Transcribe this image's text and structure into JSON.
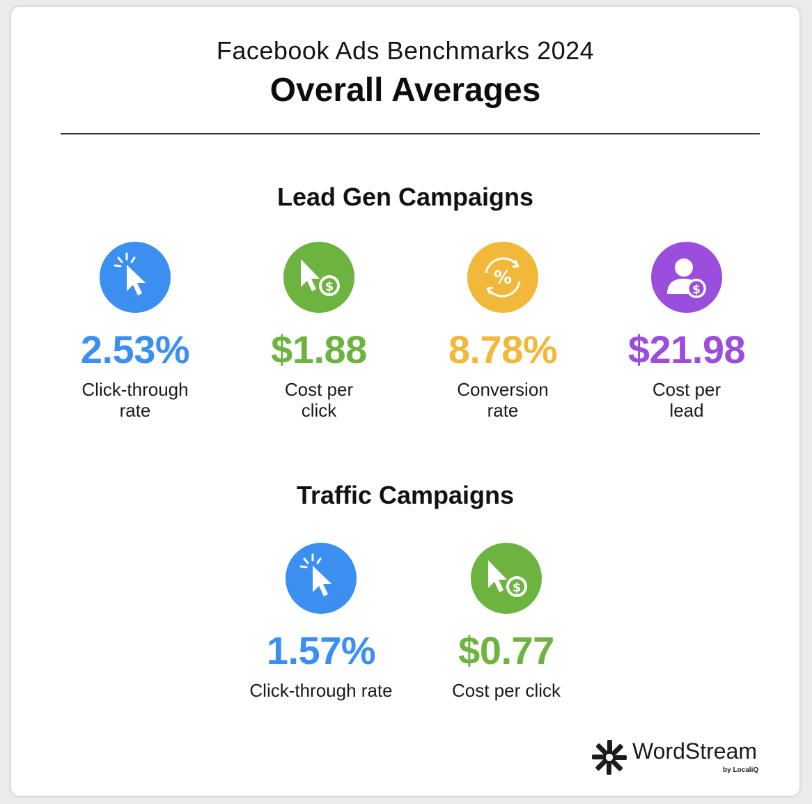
{
  "header": {
    "supertitle": "Facebook Ads Benchmarks 2024",
    "title": "Overall Averages"
  },
  "lead_gen": {
    "title": "Lead Gen Campaigns",
    "metrics": [
      {
        "value": "2.53%",
        "label_line1": "Click-through",
        "label_line2": "rate",
        "color": "#3a8ff0",
        "icon": "cursor-click-icon"
      },
      {
        "value": "$1.88",
        "label_line1": "Cost per",
        "label_line2": "click",
        "color": "#6db33f",
        "icon": "cursor-dollar-icon"
      },
      {
        "value": "8.78%",
        "label_line1": "Conversion",
        "label_line2": "rate",
        "color": "#f2b83a",
        "icon": "percent-cycle-icon"
      },
      {
        "value": "$21.98",
        "label_line1": "Cost per",
        "label_line2": "lead",
        "color": "#9b4ddb",
        "icon": "user-dollar-icon"
      }
    ]
  },
  "traffic": {
    "title": "Traffic Campaigns",
    "metrics": [
      {
        "value": "1.57%",
        "label": "Click-through rate",
        "color": "#3a8ff0",
        "icon": "cursor-click-icon"
      },
      {
        "value": "$0.77",
        "label": "Cost per click",
        "color": "#6db33f",
        "icon": "cursor-dollar-icon"
      }
    ]
  },
  "logo": {
    "name": "WordStream",
    "byline": "by LocaliQ"
  }
}
